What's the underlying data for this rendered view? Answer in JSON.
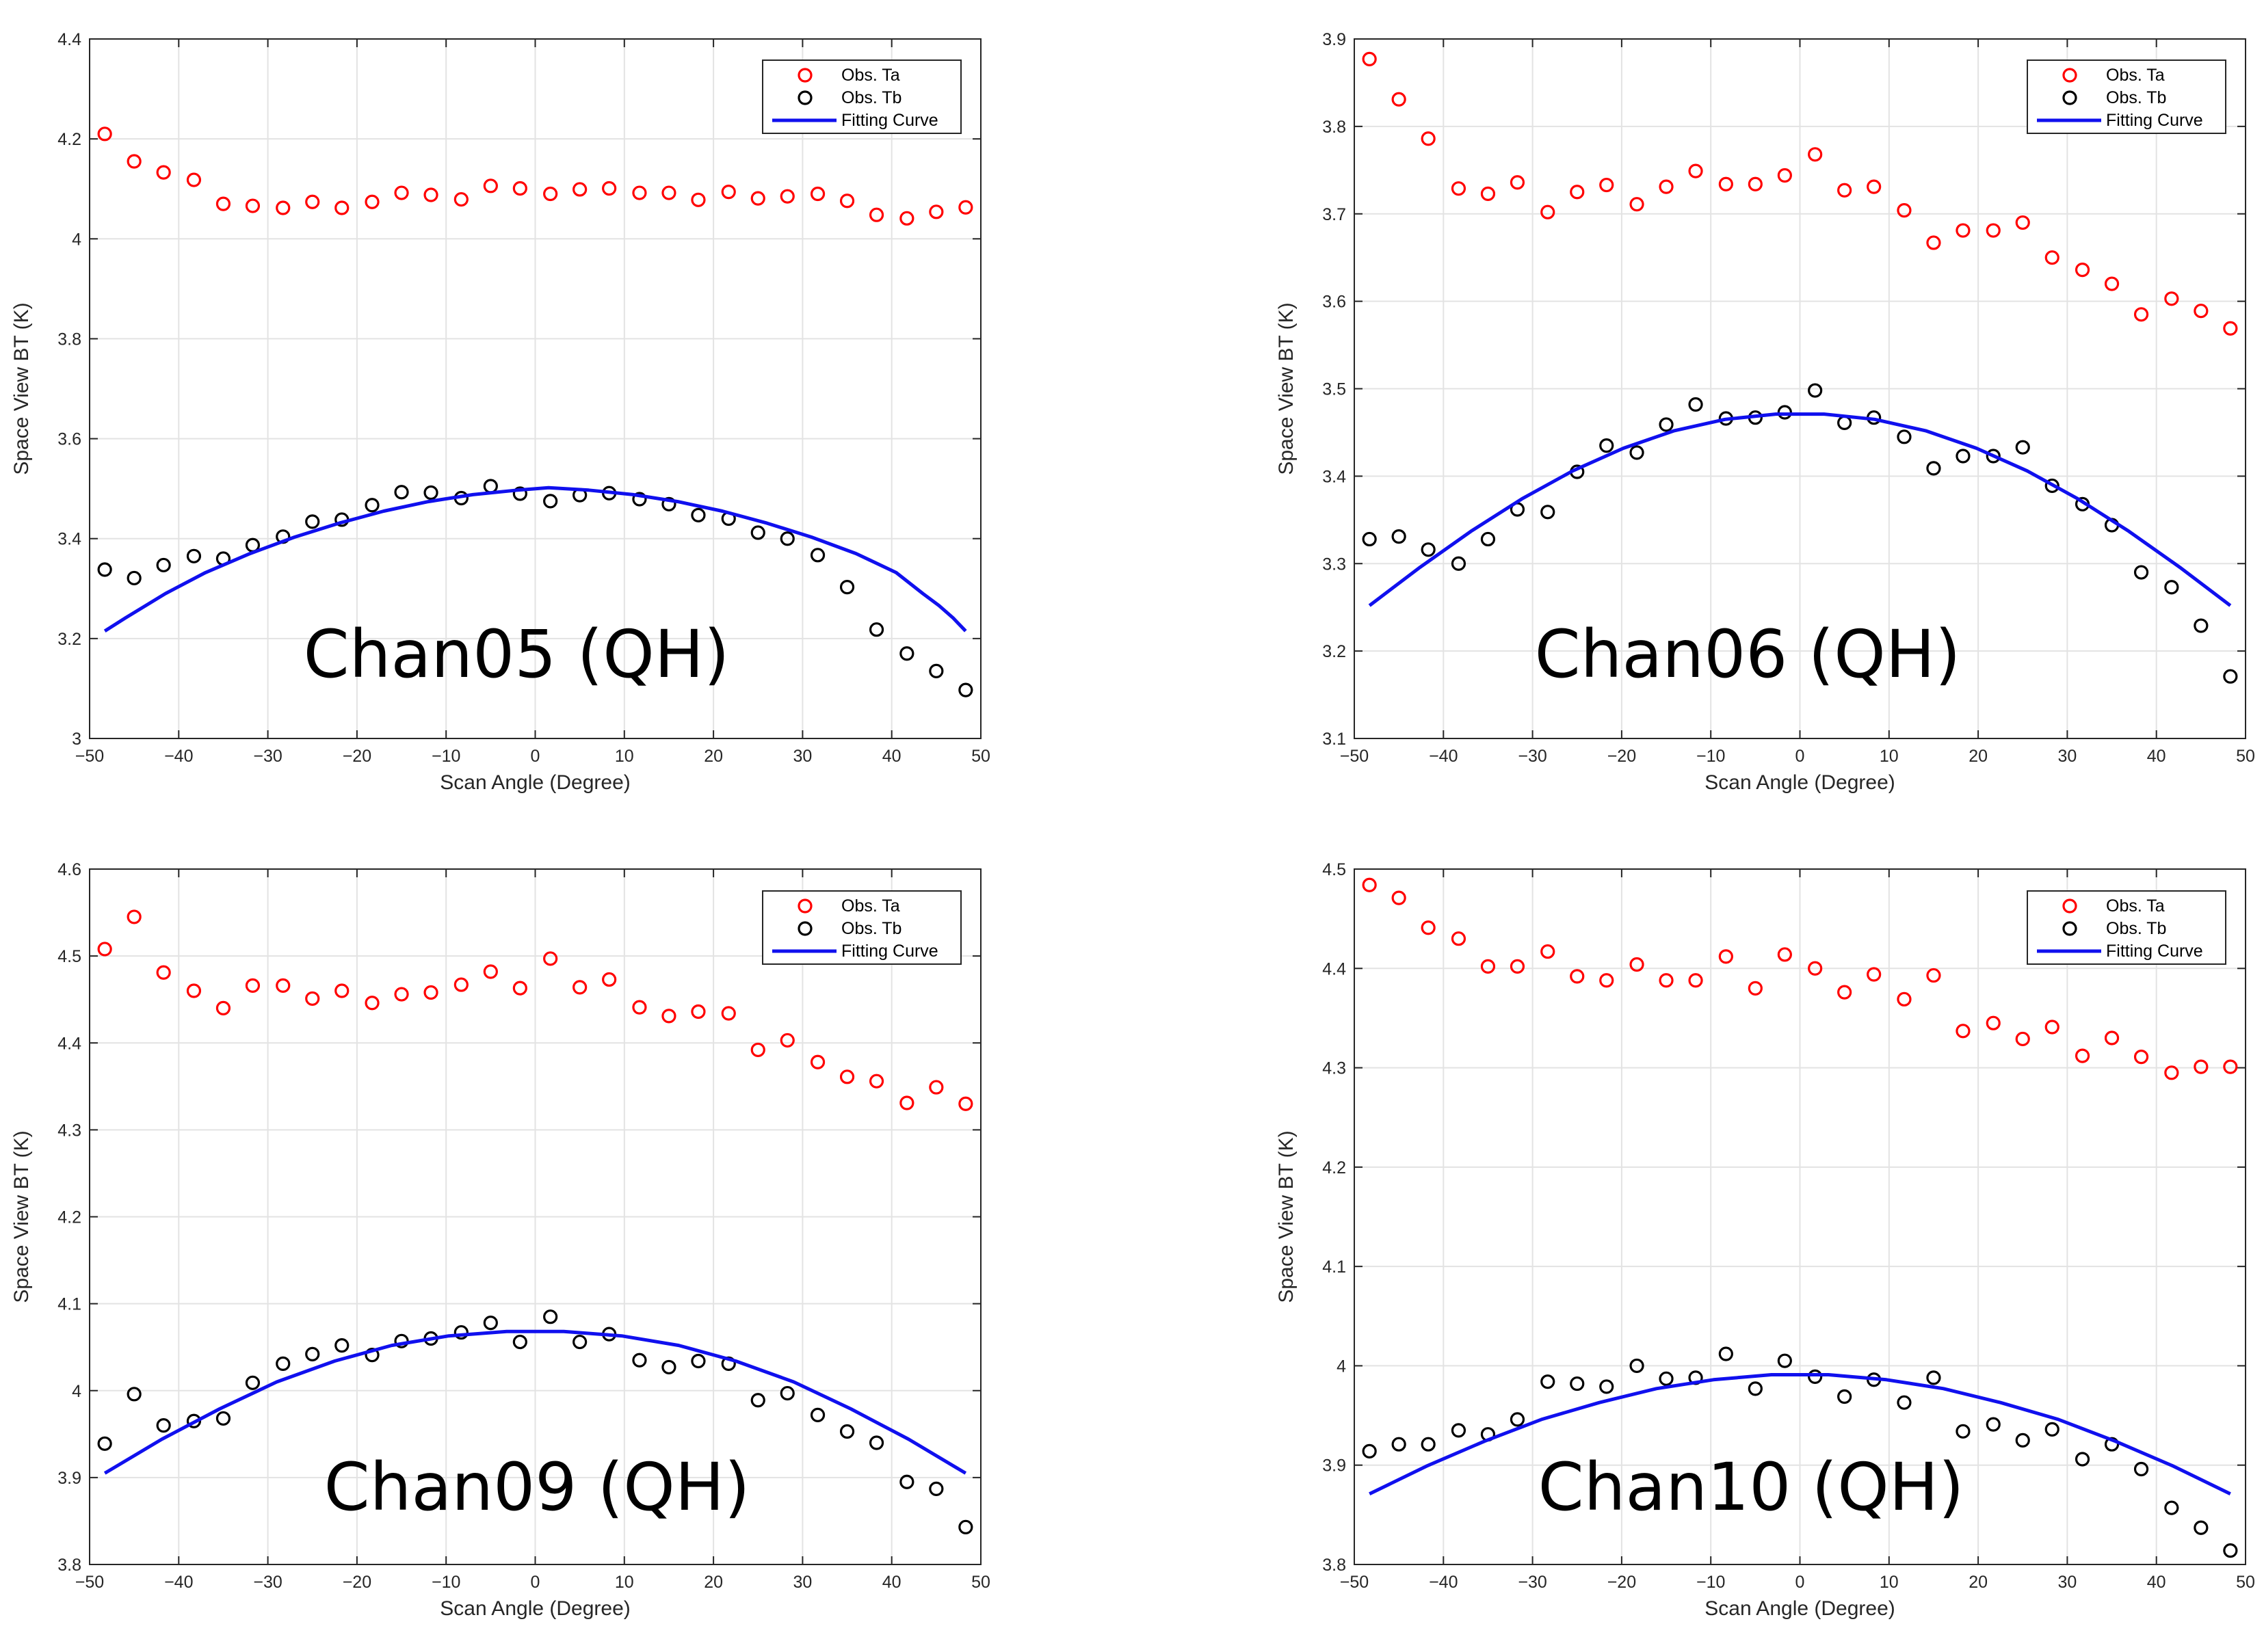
{
  "chart_data": [
    {
      "type": "scatter",
      "title": "Chan05 (QH)",
      "xlabel": "Scan Angle (Degree)",
      "ylabel": "Space View BT (K)",
      "xlim": [
        -50,
        50
      ],
      "ylim": [
        3.0,
        4.4
      ],
      "xticks": [
        -50,
        -40,
        -30,
        -20,
        -10,
        0,
        10,
        20,
        30,
        40,
        50
      ],
      "yticks": [
        3.0,
        3.2,
        3.4,
        3.6,
        3.8,
        4.0,
        4.2,
        4.4
      ],
      "xtick_labels": [
        "−50",
        "−40",
        "−30",
        "−20",
        "−10",
        "0",
        "10",
        "20",
        "30",
        "40",
        "50"
      ],
      "ytick_labels": [
        "3",
        "3.2",
        "3.4",
        "3.6",
        "3.8",
        "4",
        "4.2",
        "4.4"
      ],
      "grid": true,
      "legend_position": "top-right",
      "x": [
        -48.3,
        -45.0,
        -41.7,
        -38.3,
        -35.0,
        -31.7,
        -28.3,
        -25.0,
        -21.7,
        -18.3,
        -15.0,
        -11.7,
        -8.3,
        -5.0,
        -1.7,
        1.7,
        5.0,
        8.3,
        11.7,
        15.0,
        18.3,
        21.7,
        25.0,
        28.3,
        31.7,
        35.0,
        38.3,
        41.7,
        45.0,
        48.3
      ],
      "series": [
        {
          "name": "Obs. Ta",
          "kind": "markers",
          "color": "#ff0000",
          "values": [
            4.21,
            4.155,
            4.133,
            4.118,
            4.07,
            4.066,
            4.062,
            4.074,
            4.062,
            4.074,
            4.092,
            4.088,
            4.079,
            4.106,
            4.101,
            4.09,
            4.099,
            4.101,
            4.092,
            4.092,
            4.078,
            4.094,
            4.081,
            4.085,
            4.09,
            4.076,
            4.048,
            4.041,
            4.054,
            4.063
          ]
        },
        {
          "name": "Obs. Tb",
          "kind": "markers",
          "color": "#000000",
          "values": [
            3.338,
            3.321,
            3.347,
            3.365,
            3.36,
            3.387,
            3.404,
            3.434,
            3.438,
            3.467,
            3.493,
            3.492,
            3.481,
            3.505,
            3.49,
            3.475,
            3.487,
            3.491,
            3.479,
            3.469,
            3.447,
            3.44,
            3.412,
            3.4,
            3.367,
            3.303,
            3.218,
            3.17,
            3.135,
            3.097
          ]
        },
        {
          "name": "Fitting Curve",
          "kind": "line",
          "color": "#1010ee",
          "values": [
            3.215,
            3.241,
            3.266,
            3.29,
            3.332,
            3.37,
            3.403,
            3.431,
            3.455,
            3.474,
            3.488,
            3.497,
            3.502,
            3.502,
            3.497,
            3.488,
            3.474,
            3.455,
            3.431,
            3.403,
            3.37,
            3.332,
            3.29,
            3.266,
            3.241,
            3.215
          ],
          "x": [
            -48.3,
            -46,
            -43.7,
            -41.5,
            -37,
            -32,
            -27,
            -22,
            -17,
            -12,
            -7,
            -2,
            1.5,
            1.5,
            6,
            11,
            16,
            21,
            26,
            31,
            36,
            40.5,
            43.5,
            45.3,
            46.9,
            48.3
          ]
        }
      ]
    },
    {
      "type": "scatter",
      "title": "Chan06 (QH)",
      "xlabel": "Scan Angle (Degree)",
      "ylabel": "Space View BT (K)",
      "xlim": [
        -50,
        50
      ],
      "ylim": [
        3.1,
        3.9
      ],
      "xticks": [
        -50,
        -40,
        -30,
        -20,
        -10,
        0,
        10,
        20,
        30,
        40,
        50
      ],
      "yticks": [
        3.1,
        3.2,
        3.3,
        3.4,
        3.5,
        3.6,
        3.7,
        3.8,
        3.9
      ],
      "xtick_labels": [
        "−50",
        "−40",
        "−30",
        "−20",
        "−10",
        "0",
        "10",
        "20",
        "30",
        "40",
        "50"
      ],
      "ytick_labels": [
        "3.1",
        "3.2",
        "3.3",
        "3.4",
        "3.5",
        "3.6",
        "3.7",
        "3.8",
        "3.9"
      ],
      "grid": true,
      "legend_position": "top-right",
      "x": [
        -48.3,
        -45.0,
        -41.7,
        -38.3,
        -35.0,
        -31.7,
        -28.3,
        -25.0,
        -21.7,
        -18.3,
        -15.0,
        -11.7,
        -8.3,
        -5.0,
        -1.7,
        1.7,
        5.0,
        8.3,
        11.7,
        15.0,
        18.3,
        21.7,
        25.0,
        28.3,
        31.7,
        35.0,
        38.3,
        41.7,
        45.0,
        48.3
      ],
      "series": [
        {
          "name": "Obs. Ta",
          "kind": "markers",
          "color": "#ff0000",
          "values": [
            3.877,
            3.831,
            3.786,
            3.729,
            3.723,
            3.736,
            3.702,
            3.725,
            3.733,
            3.711,
            3.731,
            3.749,
            3.734,
            3.734,
            3.744,
            3.768,
            3.727,
            3.731,
            3.704,
            3.667,
            3.681,
            3.681,
            3.69,
            3.65,
            3.636,
            3.62,
            3.585,
            3.603,
            3.589,
            3.569
          ]
        },
        {
          "name": "Obs. Tb",
          "kind": "markers",
          "color": "#000000",
          "values": [
            3.328,
            3.331,
            3.316,
            3.3,
            3.328,
            3.362,
            3.359,
            3.405,
            3.435,
            3.427,
            3.459,
            3.482,
            3.466,
            3.467,
            3.473,
            3.498,
            3.461,
            3.467,
            3.445,
            3.409,
            3.423,
            3.423,
            3.433,
            3.389,
            3.368,
            3.344,
            3.29,
            3.273,
            3.229,
            3.171
          ]
        },
        {
          "name": "Fitting Curve",
          "kind": "line",
          "color": "#1010ee",
          "values": [
            3.252,
            3.296,
            3.337,
            3.374,
            3.406,
            3.432,
            3.452,
            3.465,
            3.471,
            3.471,
            3.465,
            3.452,
            3.432,
            3.406,
            3.374,
            3.337,
            3.296,
            3.252
          ],
          "x": [
            -48.3,
            -42.6,
            -36.9,
            -31.2,
            -25.5,
            -19.8,
            -14.1,
            -8.4,
            -2.7,
            2.7,
            8.4,
            14.1,
            19.8,
            25.5,
            31.2,
            36.9,
            42.6,
            48.3
          ]
        }
      ]
    },
    {
      "type": "scatter",
      "title": "Chan09 (QH)",
      "xlabel": "Scan Angle (Degree)",
      "ylabel": "Space View BT (K)",
      "xlim": [
        -50,
        50
      ],
      "ylim": [
        3.8,
        4.6
      ],
      "xticks": [
        -50,
        -40,
        -30,
        -20,
        -10,
        0,
        10,
        20,
        30,
        40,
        50
      ],
      "yticks": [
        3.8,
        3.9,
        4.0,
        4.1,
        4.2,
        4.3,
        4.4,
        4.5,
        4.6
      ],
      "xtick_labels": [
        "−50",
        "−40",
        "−30",
        "−20",
        "−10",
        "0",
        "10",
        "20",
        "30",
        "40",
        "50"
      ],
      "ytick_labels": [
        "3.8",
        "3.9",
        "4",
        "4.1",
        "4.2",
        "4.3",
        "4.4",
        "4.5",
        "4.6"
      ],
      "grid": true,
      "legend_position": "top-right",
      "x": [
        -48.3,
        -45.0,
        -41.7,
        -38.3,
        -35.0,
        -31.7,
        -28.3,
        -25.0,
        -21.7,
        -18.3,
        -15.0,
        -11.7,
        -8.3,
        -5.0,
        -1.7,
        1.7,
        5.0,
        8.3,
        11.7,
        15.0,
        18.3,
        21.7,
        25.0,
        28.3,
        31.7,
        35.0,
        38.3,
        41.7,
        45.0,
        48.3
      ],
      "series": [
        {
          "name": "Obs. Ta",
          "kind": "markers",
          "color": "#ff0000",
          "values": [
            4.508,
            4.545,
            4.481,
            4.46,
            4.44,
            4.466,
            4.466,
            4.451,
            4.46,
            4.446,
            4.456,
            4.458,
            4.467,
            4.482,
            4.463,
            4.497,
            4.464,
            4.473,
            4.441,
            4.431,
            4.436,
            4.434,
            4.392,
            4.403,
            4.378,
            4.361,
            4.356,
            4.331,
            4.349,
            4.33
          ]
        },
        {
          "name": "Obs. Tb",
          "kind": "markers",
          "color": "#000000",
          "values": [
            3.939,
            3.996,
            3.96,
            3.965,
            3.968,
            4.009,
            4.031,
            4.042,
            4.052,
            4.041,
            4.057,
            4.06,
            4.067,
            4.078,
            4.056,
            4.085,
            4.056,
            4.065,
            4.035,
            4.027,
            4.034,
            4.031,
            3.989,
            3.997,
            3.972,
            3.953,
            3.94,
            3.895,
            3.887,
            3.843
          ]
        },
        {
          "name": "Fitting Curve",
          "kind": "line",
          "color": "#1010ee",
          "values": [
            3.905,
            3.944,
            3.979,
            4.01,
            4.034,
            4.052,
            4.063,
            4.068,
            4.068,
            4.063,
            4.052,
            4.034,
            4.01,
            3.979,
            3.944,
            3.905
          ],
          "x": [
            -48.3,
            -41.9,
            -35.4,
            -29.0,
            -22.5,
            -16.1,
            -9.7,
            -3.2,
            3.2,
            9.7,
            16.1,
            22.5,
            29.0,
            35.4,
            41.9,
            48.3
          ]
        }
      ]
    },
    {
      "type": "scatter",
      "title": "Chan10 (QH)",
      "xlabel": "Scan Angle (Degree)",
      "ylabel": "Space View BT (K)",
      "xlim": [
        -50,
        50
      ],
      "ylim": [
        3.8,
        4.5
      ],
      "xticks": [
        -50,
        -40,
        -30,
        -20,
        -10,
        0,
        10,
        20,
        30,
        40,
        50
      ],
      "yticks": [
        3.8,
        3.9,
        4.0,
        4.1,
        4.2,
        4.3,
        4.4,
        4.5
      ],
      "xtick_labels": [
        "−50",
        "−40",
        "−30",
        "−20",
        "−10",
        "0",
        "10",
        "20",
        "30",
        "40",
        "50"
      ],
      "ytick_labels": [
        "3.8",
        "3.9",
        "4",
        "4.1",
        "4.2",
        "4.3",
        "4.4",
        "4.5"
      ],
      "grid": true,
      "legend_position": "top-right",
      "x": [
        -48.3,
        -45.0,
        -41.7,
        -38.3,
        -35.0,
        -31.7,
        -28.3,
        -25.0,
        -21.7,
        -18.3,
        -15.0,
        -11.7,
        -8.3,
        -5.0,
        -1.7,
        1.7,
        5.0,
        8.3,
        11.7,
        15.0,
        18.3,
        21.7,
        25.0,
        28.3,
        31.7,
        35.0,
        38.3,
        41.7,
        45.0,
        48.3
      ],
      "series": [
        {
          "name": "Obs. Ta",
          "kind": "markers",
          "color": "#ff0000",
          "values": [
            4.484,
            4.471,
            4.441,
            4.43,
            4.402,
            4.402,
            4.417,
            4.392,
            4.388,
            4.404,
            4.388,
            4.388,
            4.412,
            4.38,
            4.414,
            4.4,
            4.376,
            4.394,
            4.369,
            4.393,
            4.337,
            4.345,
            4.329,
            4.341,
            4.312,
            4.33,
            4.311,
            4.295,
            4.301,
            4.301
          ]
        },
        {
          "name": "Obs. Tb",
          "kind": "markers",
          "color": "#000000",
          "values": [
            3.914,
            3.921,
            3.921,
            3.935,
            3.931,
            3.946,
            3.984,
            3.982,
            3.979,
            4.0,
            3.987,
            3.988,
            4.012,
            3.977,
            4.005,
            3.989,
            3.969,
            3.986,
            3.963,
            3.988,
            3.934,
            3.941,
            3.925,
            3.936,
            3.906,
            3.921,
            3.896,
            3.857,
            3.837,
            3.814
          ]
        },
        {
          "name": "Fitting Curve",
          "kind": "line",
          "color": "#1010ee",
          "values": [
            3.871,
            3.899,
            3.924,
            3.946,
            3.963,
            3.977,
            3.986,
            3.991,
            3.991,
            3.986,
            3.977,
            3.963,
            3.946,
            3.924,
            3.899,
            3.871
          ],
          "x": [
            -48.3,
            -41.9,
            -35.4,
            -29.0,
            -22.5,
            -16.1,
            -9.7,
            -3.2,
            3.2,
            9.7,
            16.1,
            22.5,
            29.0,
            35.4,
            41.9,
            48.3
          ]
        }
      ]
    }
  ]
}
